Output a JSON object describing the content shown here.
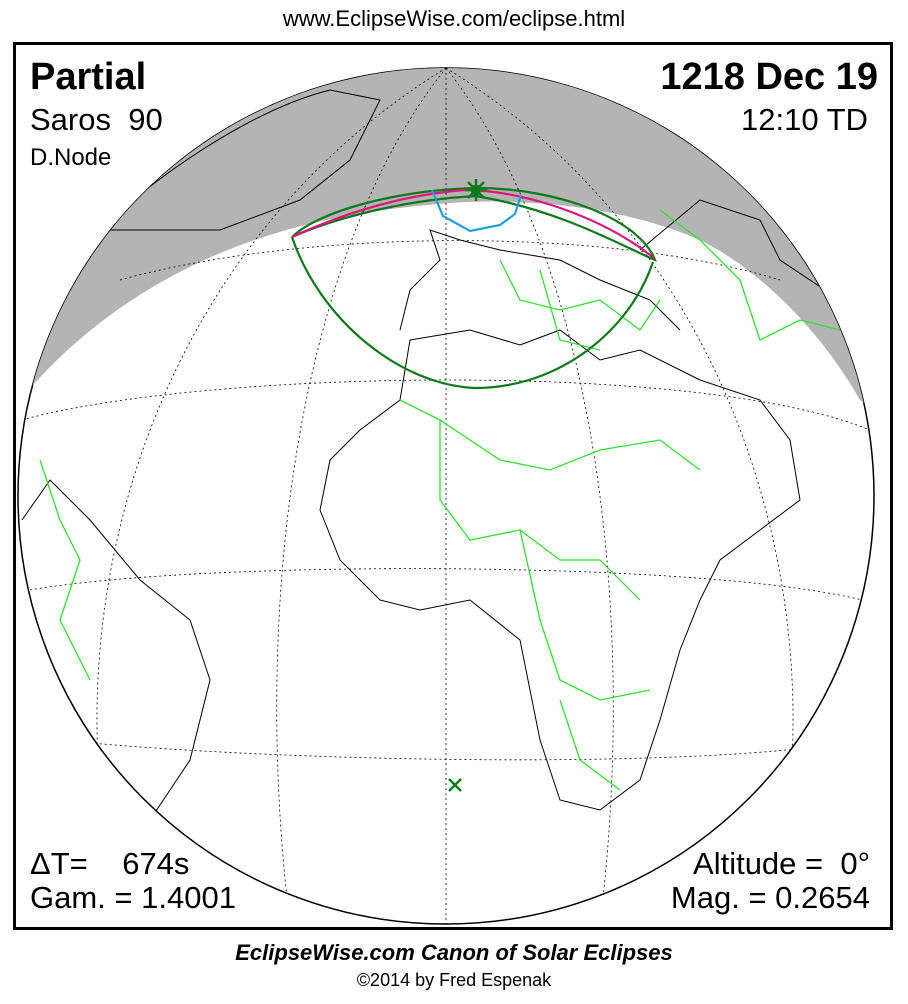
{
  "header": {
    "url": "www.EclipseWise.com/eclipse.html"
  },
  "eclipse": {
    "type": "Partial",
    "date": "1218 Dec 19",
    "saros": "Saros  90",
    "time": "12:10 TD",
    "node": "D.Node",
    "delta_t": "ΔT=    674s",
    "gamma": "Gam. = 1.4001",
    "altitude": "Altitude =  0°",
    "magnitude": "Mag. = 0.2654"
  },
  "footer": {
    "title": "EclipseWise.com Canon of Solar Eclipses",
    "copyright": "©2014 by Fred Espenak"
  },
  "colors": {
    "night": "#b4b4b4",
    "penumbra_limit": "#0a7a1a",
    "max_line": "#e0157a",
    "rise_set_curve": "#1ea0e0",
    "borders": "#33e033",
    "coast": "#000000"
  },
  "markers": {
    "greatest_eclipse": "star-icon",
    "sub_solar": "x-icon"
  }
}
